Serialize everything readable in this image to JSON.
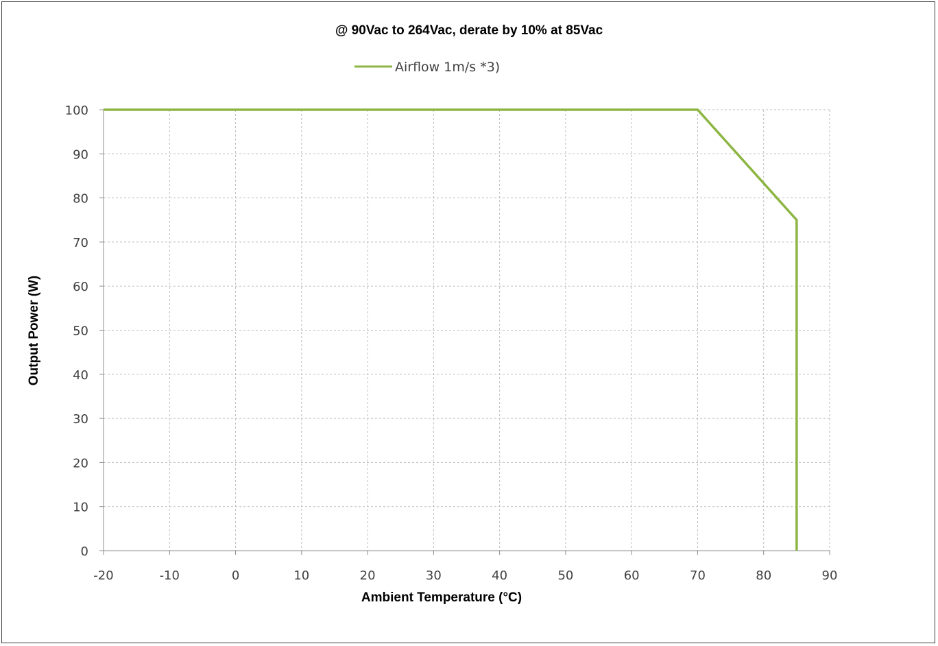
{
  "chart_data": {
    "type": "line",
    "title": "@ 90Vac to 264Vac, derate by 10% at 85Vac",
    "xlabel": "Ambient Temperature (°C)",
    "ylabel": "Output Power (W)",
    "xlim": [
      -20,
      90
    ],
    "ylim": [
      0,
      100
    ],
    "xticks": [
      -20,
      -10,
      0,
      10,
      20,
      30,
      40,
      50,
      60,
      70,
      80,
      90
    ],
    "yticks": [
      0,
      10,
      20,
      30,
      40,
      50,
      60,
      70,
      80,
      90,
      100
    ],
    "grid": true,
    "legend_position": "top-center",
    "series": [
      {
        "name": "Airflow 1m/s *3)",
        "color": "#8db543",
        "x": [
          -20,
          70,
          85,
          85
        ],
        "y": [
          100,
          100,
          75,
          0
        ]
      }
    ]
  }
}
